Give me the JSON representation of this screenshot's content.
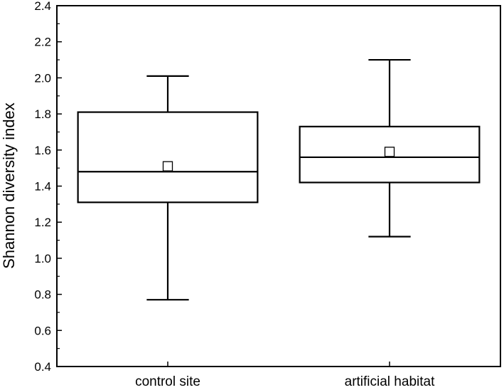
{
  "chart_data": {
    "type": "box",
    "title": "",
    "xlabel": "",
    "ylabel": "Shannon diversity index",
    "ylim": [
      0.4,
      2.4
    ],
    "yticks": [
      "0.4",
      "0.6",
      "0.8",
      "1.0",
      "1.2",
      "1.4",
      "1.6",
      "1.8",
      "2.0",
      "2.2",
      "2.4"
    ],
    "ytick_values": [
      0.4,
      0.6,
      0.8,
      1.0,
      1.2,
      1.4,
      1.6,
      1.8,
      2.0,
      2.2,
      2.4
    ],
    "y_minor_step": 0.1,
    "grid": false,
    "categories": [
      "control site",
      "artificial habitat"
    ],
    "boxes": [
      {
        "category": "control site",
        "whisker_low": 0.77,
        "q1": 1.31,
        "median": 1.48,
        "q3": 1.81,
        "whisker_high": 2.01,
        "mean": 1.51
      },
      {
        "category": "artificial habitat",
        "whisker_low": 1.12,
        "q1": 1.42,
        "median": 1.56,
        "q3": 1.73,
        "whisker_high": 2.1,
        "mean": 1.59
      }
    ],
    "colors": {
      "stroke": "#000000",
      "fill": "#ffffff"
    }
  }
}
